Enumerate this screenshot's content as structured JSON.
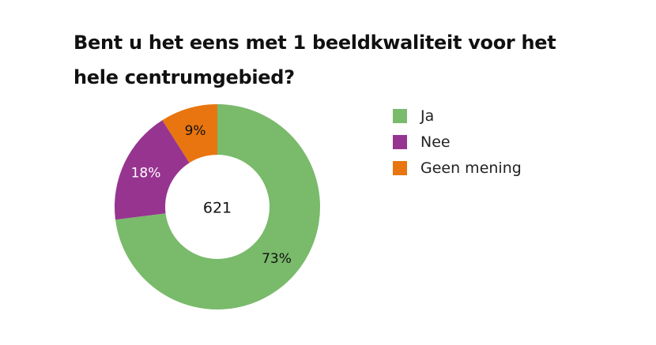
{
  "chart_data": {
    "type": "pie",
    "title": "Bent u het eens met 1 beeldkwaliteit voor het hele centrumgebied?",
    "center_label": "621",
    "slices": [
      {
        "label": "Ja",
        "value": 73,
        "display": "73%",
        "color": "#7aba6b",
        "text_color": "#111111"
      },
      {
        "label": "Nee",
        "value": 18,
        "display": "18%",
        "color": "#973490",
        "text_color": "#ffffff"
      },
      {
        "label": "Geen mening",
        "value": 9,
        "display": "9%",
        "color": "#e8750f",
        "text_color": "#111111"
      }
    ],
    "legend_position": "right"
  }
}
